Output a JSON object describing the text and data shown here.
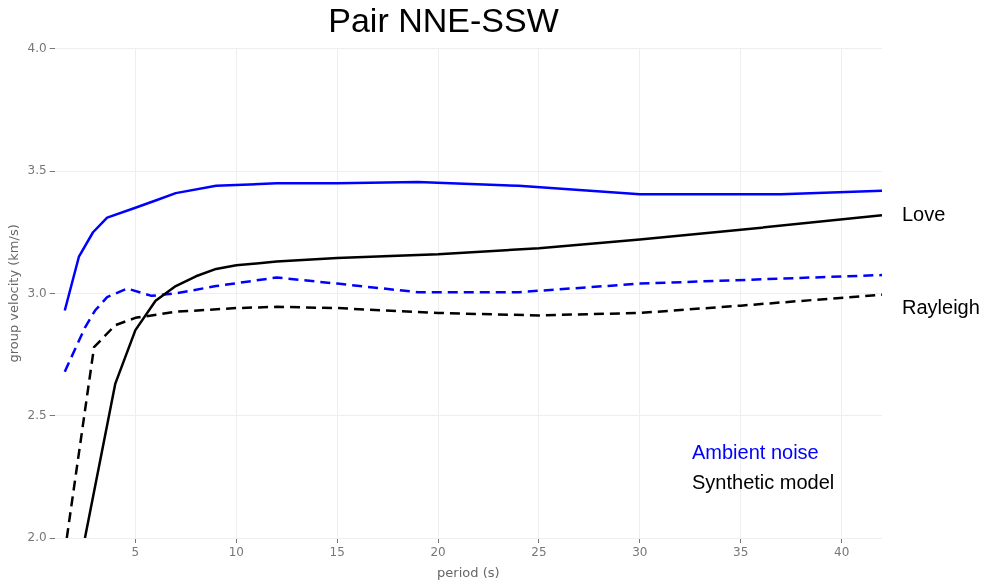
{
  "chart_data": {
    "type": "line",
    "title": "Pair NNE-SSW",
    "xlabel": "period (s)",
    "ylabel": "group velocity (km/s)",
    "xlim": [
      1,
      42
    ],
    "xticks": [
      5,
      10,
      15,
      20,
      25,
      30,
      35,
      40
    ],
    "ylim": [
      2,
      4
    ],
    "yticks": [
      {
        "value": 2,
        "label": "2.0"
      },
      {
        "value": 2.5,
        "label": "2.5"
      },
      {
        "value": 3,
        "label": "3.0"
      },
      {
        "value": 3.5,
        "label": "3.5"
      },
      {
        "value": 4,
        "label": "4.0"
      }
    ],
    "grid": true,
    "series": [
      {
        "color": "#0000ff",
        "line_style": "solid",
        "x": [
          1.5,
          2.2,
          2.9,
          3.6,
          5,
          6,
          7,
          9,
          12,
          15,
          19,
          24,
          30,
          37,
          42
        ],
        "values": [
          2.93,
          3.15,
          3.25,
          3.31,
          3.35,
          3.38,
          3.41,
          3.44,
          3.45,
          3.45,
          3.455,
          3.44,
          3.405,
          3.405,
          3.42
        ]
      },
      {
        "color": "#000000",
        "line_style": "solid",
        "x": [
          2.5,
          4,
          5,
          6,
          7,
          8,
          9,
          10,
          12,
          15,
          20,
          25,
          30,
          35,
          42
        ],
        "values": [
          2.0,
          2.63,
          2.85,
          2.97,
          3.03,
          3.07,
          3.1,
          3.115,
          3.13,
          3.145,
          3.16,
          3.185,
          3.22,
          3.26,
          3.32
        ]
      },
      {
        "color": "#0000ff",
        "line_style": "dashed",
        "x": [
          1.5,
          2.5,
          3,
          3.6,
          4.6,
          5.8,
          7,
          9,
          12,
          15,
          19,
          24,
          30,
          42
        ],
        "values": [
          2.68,
          2.86,
          2.93,
          2.985,
          3.02,
          2.99,
          3.0,
          3.03,
          3.065,
          3.04,
          3.005,
          3.005,
          3.04,
          3.075
        ]
      },
      {
        "color": "#000000",
        "line_style": "dashed",
        "x": [
          1.6,
          2.95,
          4,
          5,
          7,
          10,
          12,
          15,
          20,
          25,
          30,
          35,
          42
        ],
        "values": [
          2.0,
          2.78,
          2.87,
          2.9,
          2.925,
          2.94,
          2.945,
          2.94,
          2.92,
          2.91,
          2.92,
          2.95,
          2.995
        ]
      }
    ],
    "annotations": [
      "Love",
      "Rayleigh",
      "Ambient noise",
      "Synthetic model"
    ]
  }
}
